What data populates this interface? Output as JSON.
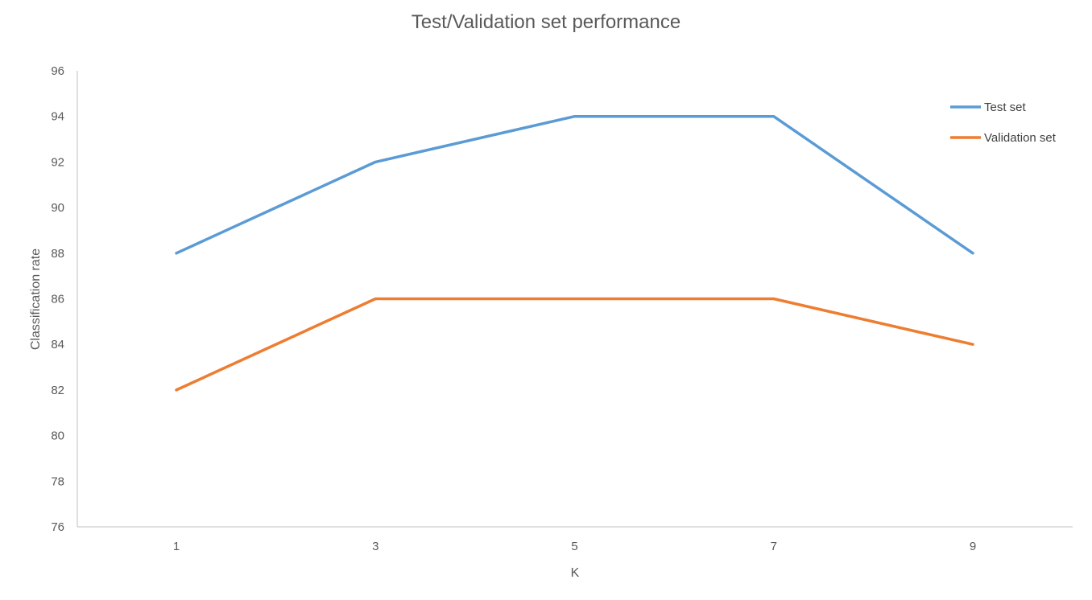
{
  "chart_data": {
    "type": "line",
    "title": "Test/Validation set performance",
    "xlabel": "K",
    "ylabel": "Classification rate",
    "categories": [
      "1",
      "3",
      "5",
      "7",
      "9"
    ],
    "ylim": [
      76,
      96
    ],
    "yticks": [
      76,
      78,
      80,
      82,
      84,
      86,
      88,
      90,
      92,
      94,
      96
    ],
    "grid": false,
    "legend_position": "top-right",
    "series": [
      {
        "name": "Test set",
        "color": "#5B9BD5",
        "values": [
          88,
          92,
          94,
          94,
          88
        ]
      },
      {
        "name": "Validation set",
        "color": "#ED7D31",
        "values": [
          82,
          86,
          86,
          86,
          84
        ]
      }
    ]
  }
}
